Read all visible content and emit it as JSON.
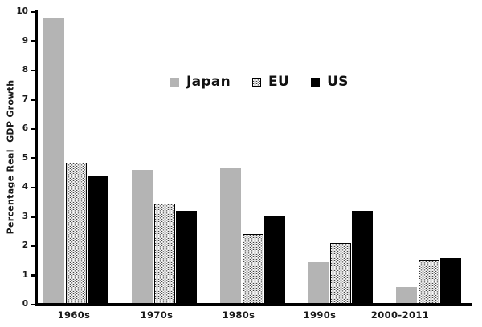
{
  "chart_data": {
    "type": "bar",
    "title": "",
    "xlabel": "",
    "ylabel": "Percentage Real  GDP Growth",
    "categories": [
      "1960s",
      "1970s",
      "1980s",
      "1990s",
      "2000-2011"
    ],
    "series": [
      {
        "name": "Japan",
        "style": "solid-gray",
        "color": "#b4b4b4",
        "values": [
          9.8,
          4.6,
          4.65,
          1.45,
          0.6
        ]
      },
      {
        "name": "EU",
        "style": "stipple",
        "color": "#ffffff",
        "values": [
          4.85,
          3.45,
          2.4,
          2.1,
          1.5
        ]
      },
      {
        "name": "US",
        "style": "solid-black",
        "color": "#000000",
        "values": [
          4.4,
          3.2,
          3.05,
          3.2,
          1.6
        ]
      }
    ],
    "ylim": [
      0,
      10
    ],
    "yticks": [
      0,
      1,
      2,
      3,
      4,
      5,
      6,
      7,
      8,
      9,
      10
    ],
    "grid": false,
    "legend_position": "upper-center",
    "axis_color": "#000000",
    "background_color": "#ffffff"
  }
}
